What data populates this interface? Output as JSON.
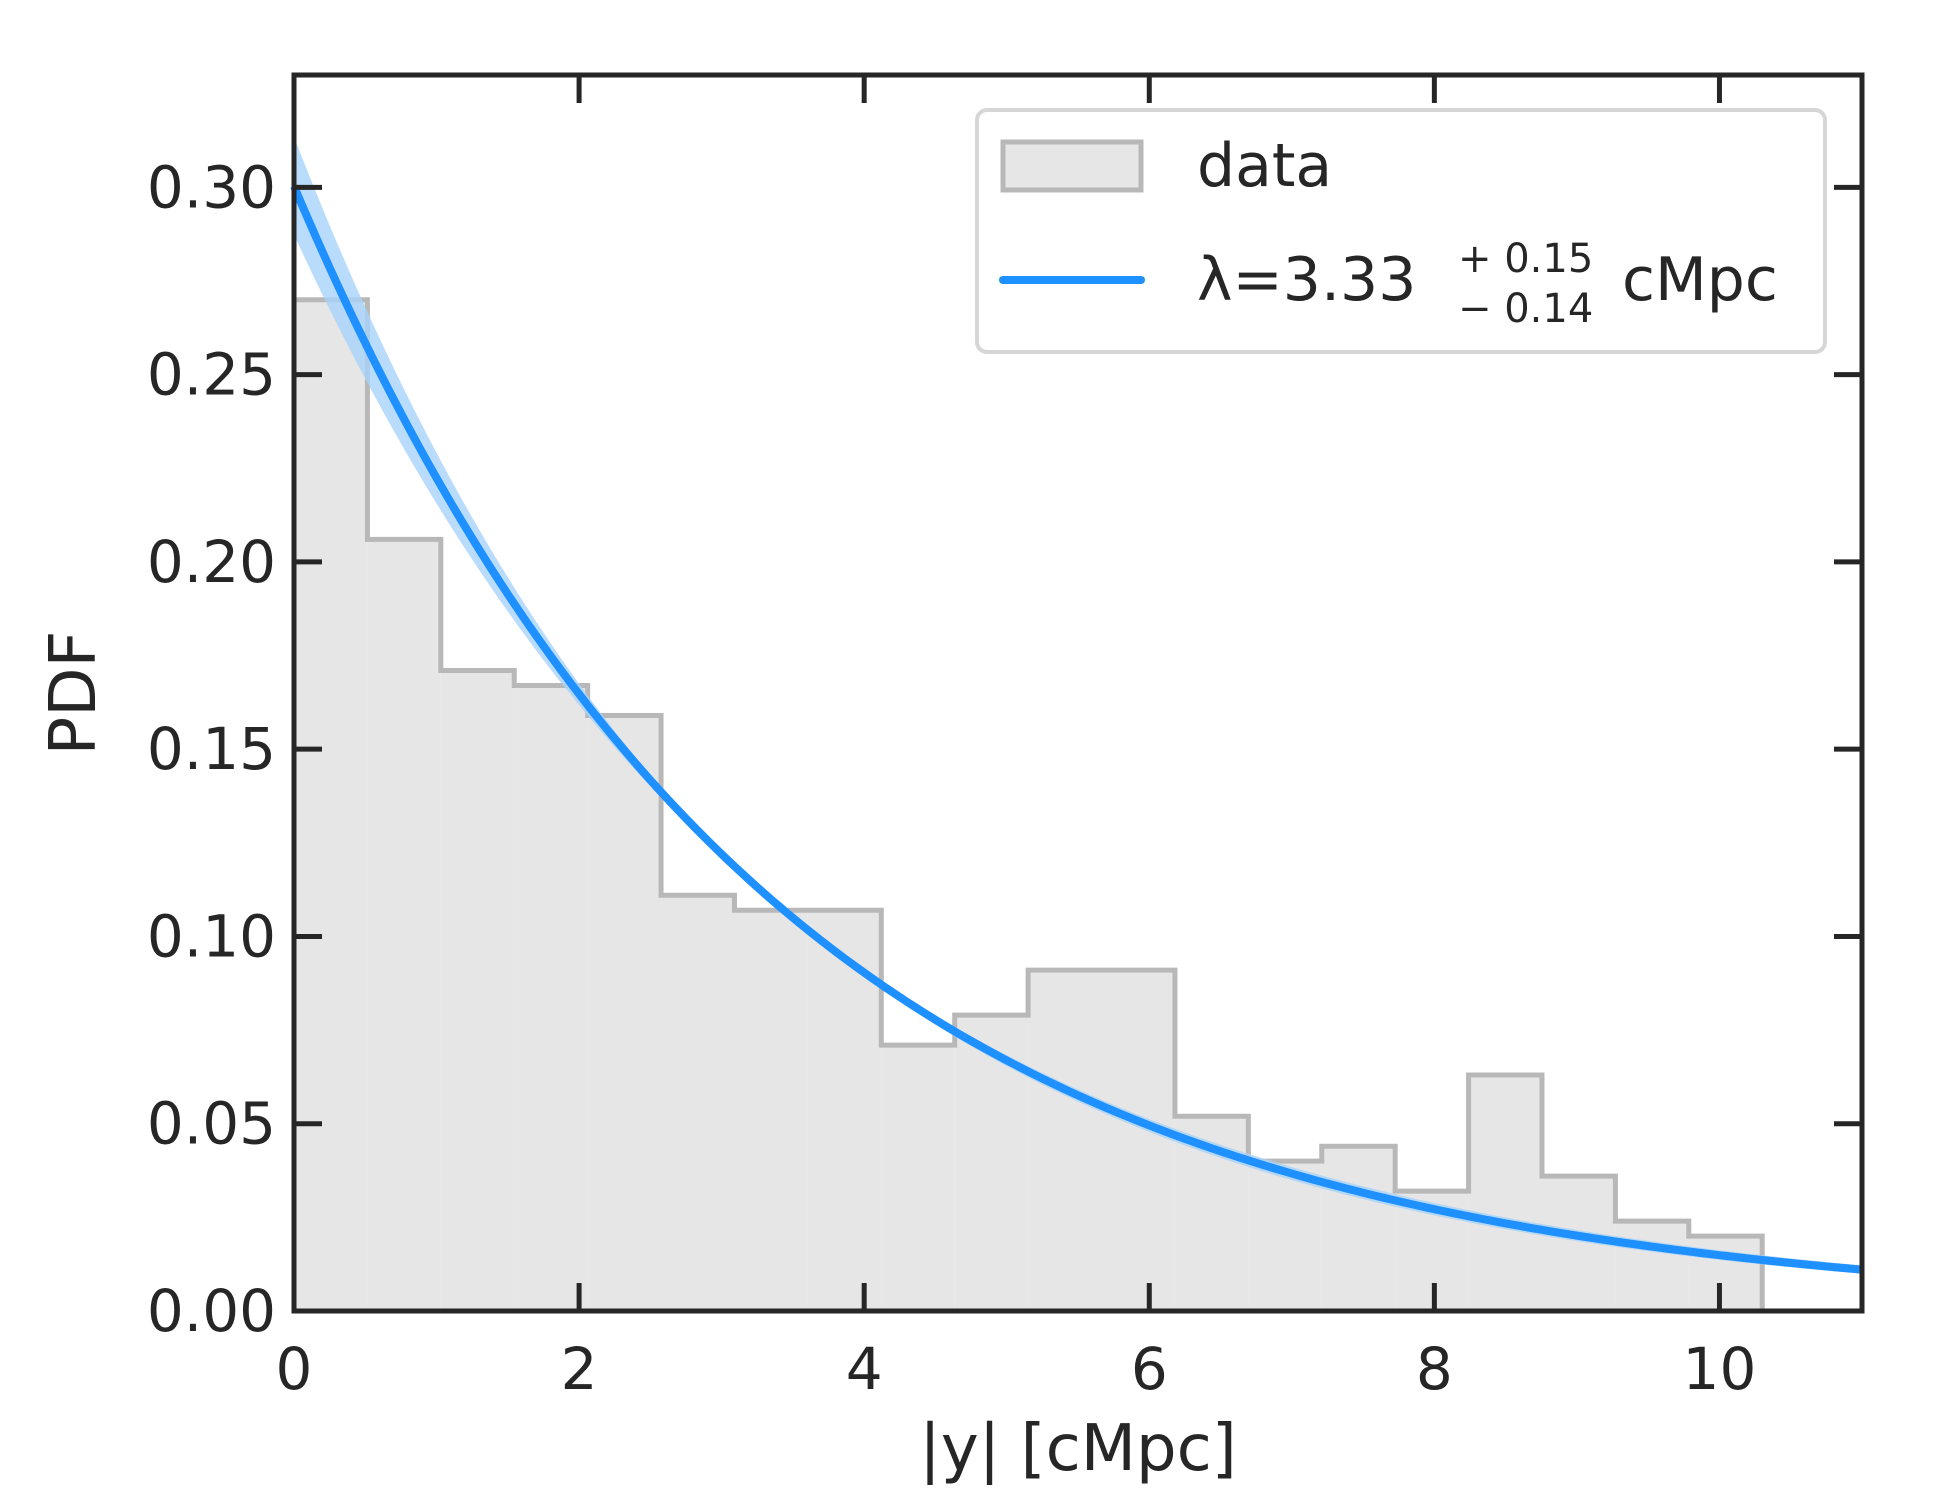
{
  "chart_data": {
    "type": "bar",
    "title": "",
    "xlabel": "|y| [cMpc]",
    "ylabel": "PDF",
    "xlim": [
      0,
      11
    ],
    "ylim": [
      0,
      0.33
    ],
    "xticks": [
      0,
      2,
      4,
      6,
      8,
      10
    ],
    "xtick_labels": [
      "0",
      "2",
      "4",
      "6",
      "8",
      "10"
    ],
    "yticks": [
      0.0,
      0.05,
      0.1,
      0.15,
      0.2,
      0.25,
      0.3
    ],
    "ytick_labels": [
      "0.00",
      "0.05",
      "0.10",
      "0.15",
      "0.20",
      "0.25",
      "0.30"
    ],
    "grid": false,
    "legend_position": "top-right",
    "histogram": {
      "name": "data",
      "fill_color": "#e6e6e6",
      "edge_color": "#b8b8b8",
      "bin_edges": [
        0.0,
        0.515,
        1.03,
        1.545,
        2.06,
        2.575,
        3.09,
        3.605,
        4.12,
        4.635,
        5.15,
        5.665,
        6.18,
        6.695,
        7.21,
        7.725,
        8.24,
        8.755,
        9.27,
        9.785,
        10.3
      ],
      "values": [
        0.27,
        0.206,
        0.171,
        0.167,
        0.159,
        0.111,
        0.107,
        0.107,
        0.071,
        0.079,
        0.091,
        0.091,
        0.052,
        0.04,
        0.044,
        0.032,
        0.063,
        0.036,
        0.024,
        0.02
      ]
    },
    "fit": {
      "name": "exponential fit",
      "function": "exp(-x/lambda)/lambda",
      "lambda": 3.33,
      "lambda_err_plus": 0.15,
      "lambda_err_minus": 0.14,
      "color": "#1e90ff",
      "band_color": "#a9d3fb"
    },
    "legend": {
      "hist_label": "data",
      "fit_label_prefix": "λ=3.33",
      "fit_err_plus": "+ 0.15",
      "fit_err_minus": "− 0.14",
      "fit_label_unit": "cMpc"
    }
  }
}
